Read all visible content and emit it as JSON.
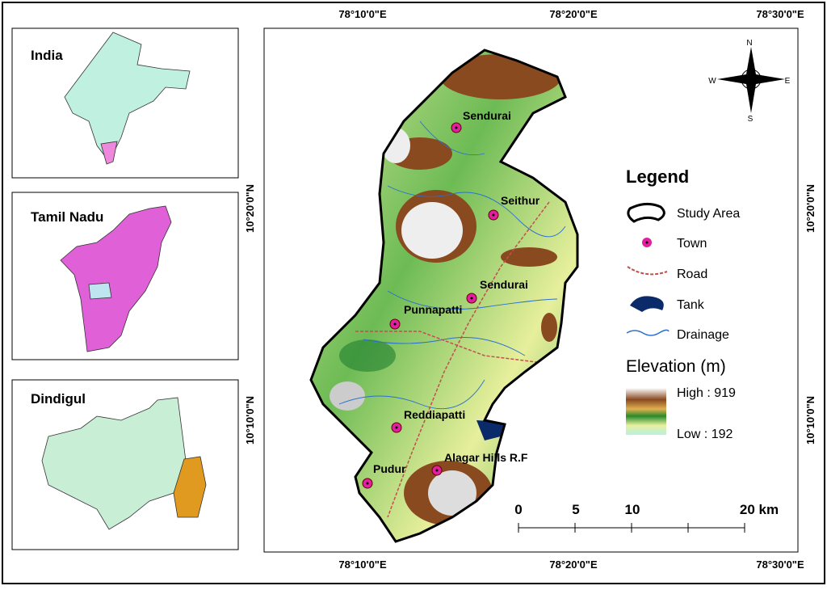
{
  "insets": [
    {
      "title": "India"
    },
    {
      "title": "Tamil Nadu"
    },
    {
      "title": "Dindigul"
    }
  ],
  "map": {
    "top_labels": [
      "78°10'0\"E",
      "78°20'0\"E",
      "78°30'0\"E"
    ],
    "bottom_labels": [
      "78°10'0\"E",
      "78°20'0\"E",
      "78°30'0\"E"
    ],
    "left_labels": [
      "10°20'0\"N",
      "10°10'0\"N"
    ],
    "right_labels": [
      "10°20'0\"N",
      "10°10'0\"N"
    ],
    "towns": [
      "Sendurai",
      "Seithur",
      "Sendurai",
      "Punnapatti",
      "Reddiapatti",
      "Alagar Hills R.F",
      "Pudur"
    ],
    "compass": {
      "n": "N",
      "s": "S",
      "w": "W",
      "e": "E"
    }
  },
  "legend": {
    "title": "Legend",
    "items": [
      "Study Area",
      "Town",
      "Road",
      "Tank",
      "Drainage"
    ],
    "elevation_title": "Elevation (m)",
    "high": "High : 919",
    "low": "Low : 192"
  },
  "scale_bar": {
    "labels": [
      "0",
      "5",
      "10",
      "20 km"
    ]
  }
}
